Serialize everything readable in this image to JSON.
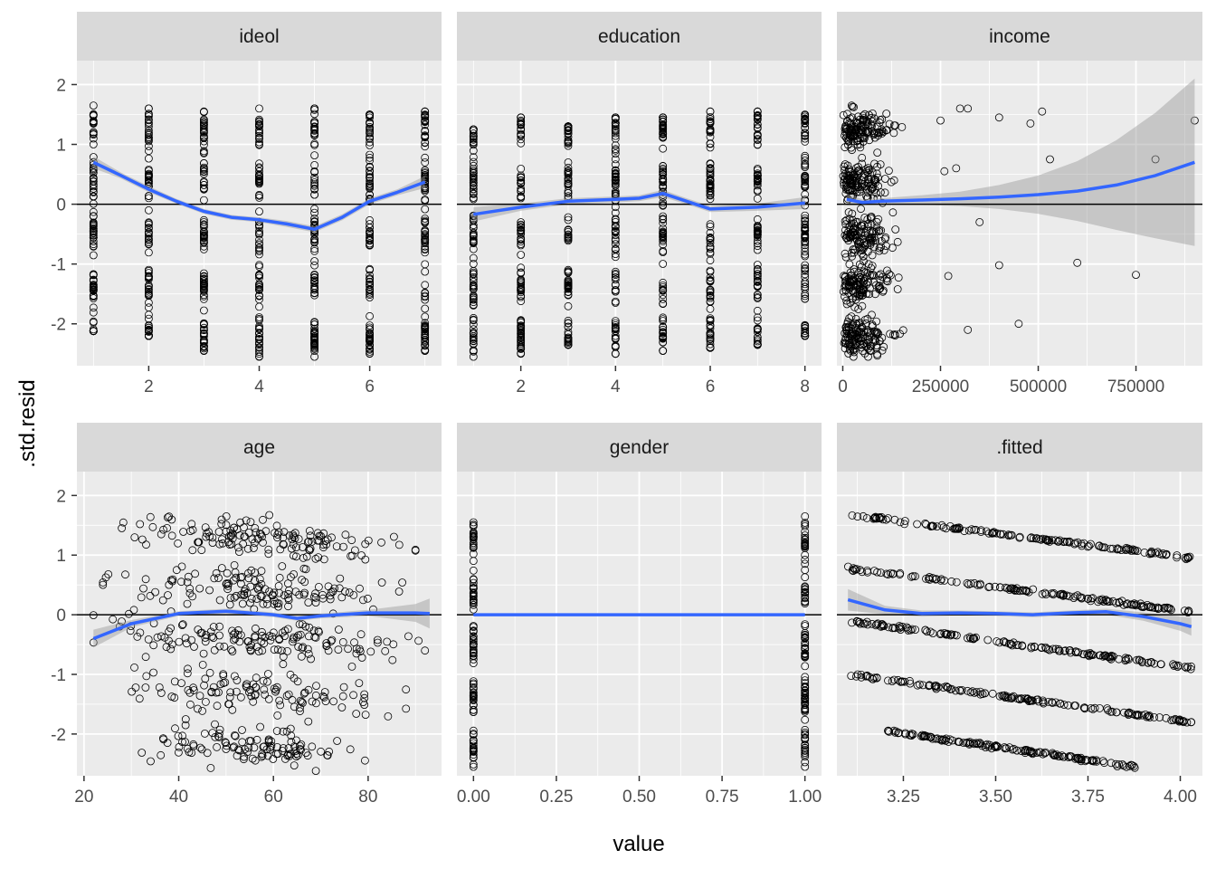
{
  "chart_data": {
    "type": "scatter",
    "title": "",
    "xlabel": "value",
    "ylabel": ".std.resid",
    "ylim": [
      -2.7,
      2.4
    ],
    "yticks": [
      2,
      1,
      0,
      -1,
      -2
    ],
    "ytick_labels": [
      "2",
      "1",
      "0",
      "-1",
      "-2"
    ],
    "reference_line_y": 0,
    "smoother": "loess with confidence band",
    "colors": {
      "panel_bg": "#ebebeb",
      "strip_bg": "#d9d9d9",
      "grid": "#ffffff",
      "points": "#000000",
      "smooth_line": "#3366ff",
      "band": "#999999"
    },
    "panels": [
      {
        "name": "ideol",
        "xlim": [
          0.7,
          7.3
        ],
        "xticks": [
          2,
          4,
          6
        ],
        "xtick_labels": [
          "2",
          "4",
          "6"
        ],
        "columns": [
          {
            "x": 1,
            "ymin": -2.12,
            "ymax": 1.65
          },
          {
            "x": 2,
            "ymin": -2.2,
            "ymax": 1.6
          },
          {
            "x": 3,
            "ymin": -2.45,
            "ymax": 1.55
          },
          {
            "x": 4,
            "ymin": -2.55,
            "ymax": 1.6
          },
          {
            "x": 5,
            "ymin": -2.55,
            "ymax": 1.6
          },
          {
            "x": 6,
            "ymin": -2.5,
            "ymax": 1.5
          },
          {
            "x": 7,
            "ymin": -2.45,
            "ymax": 1.55
          }
        ],
        "smooth": {
          "x": [
            1,
            1.5,
            2,
            2.5,
            3,
            3.5,
            4,
            4.5,
            5,
            5.5,
            6,
            6.5,
            7
          ],
          "y": [
            0.7,
            0.48,
            0.25,
            0.05,
            -0.12,
            -0.22,
            -0.26,
            -0.33,
            -0.42,
            -0.22,
            0.05,
            0.2,
            0.37
          ],
          "se": [
            0.1,
            0.05,
            0.05,
            0.04,
            0.04,
            0.04,
            0.04,
            0.05,
            0.05,
            0.05,
            0.05,
            0.05,
            0.1
          ]
        }
      },
      {
        "name": "education",
        "xlim": [
          0.65,
          8.35
        ],
        "xticks": [
          2,
          4,
          6,
          8
        ],
        "xtick_labels": [
          "2",
          "4",
          "6",
          "8"
        ],
        "columns": [
          {
            "x": 1,
            "ymin": -2.55,
            "ymax": 1.25
          },
          {
            "x": 2,
            "ymin": -2.5,
            "ymax": 1.45
          },
          {
            "x": 3,
            "ymin": -2.35,
            "ymax": 1.3
          },
          {
            "x": 4,
            "ymin": -2.5,
            "ymax": 1.45
          },
          {
            "x": 5,
            "ymin": -2.45,
            "ymax": 1.45
          },
          {
            "x": 6,
            "ymin": -2.4,
            "ymax": 1.55
          },
          {
            "x": 7,
            "ymin": -2.35,
            "ymax": 1.55
          },
          {
            "x": 8,
            "ymin": -2.2,
            "ymax": 1.5
          }
        ],
        "smooth": {
          "x": [
            1,
            2,
            3,
            4,
            4.5,
            5,
            5.5,
            6,
            7,
            8
          ],
          "y": [
            -0.17,
            -0.05,
            0.05,
            0.08,
            0.1,
            0.18,
            0.05,
            -0.08,
            -0.05,
            0.02
          ],
          "se": [
            0.12,
            0.06,
            0.05,
            0.05,
            0.05,
            0.06,
            0.05,
            0.05,
            0.06,
            0.1
          ]
        }
      },
      {
        "name": "income",
        "xlim": [
          -15000,
          920000
        ],
        "xticks": [
          0,
          250000,
          500000,
          750000
        ],
        "xtick_labels": [
          "0",
          "250000",
          "500000",
          "750000"
        ],
        "smooth": {
          "x": [
            10000,
            50000,
            100000,
            200000,
            300000,
            400000,
            500000,
            600000,
            700000,
            800000,
            900000
          ],
          "y": [
            0.08,
            0.03,
            0.05,
            0.07,
            0.09,
            0.12,
            0.16,
            0.22,
            0.32,
            0.48,
            0.7
          ],
          "se": [
            0.1,
            0.05,
            0.05,
            0.08,
            0.12,
            0.2,
            0.32,
            0.5,
            0.75,
            1.05,
            1.4
          ]
        },
        "outliers": [
          {
            "x": 250000,
            "y": 1.4
          },
          {
            "x": 260000,
            "y": 0.55
          },
          {
            "x": 270000,
            "y": -1.2
          },
          {
            "x": 290000,
            "y": 0.6
          },
          {
            "x": 300000,
            "y": 1.6
          },
          {
            "x": 320000,
            "y": 1.6
          },
          {
            "x": 320000,
            "y": -2.1
          },
          {
            "x": 350000,
            "y": -0.3
          },
          {
            "x": 400000,
            "y": 1.45
          },
          {
            "x": 400000,
            "y": -1.02
          },
          {
            "x": 450000,
            "y": -2.0
          },
          {
            "x": 480000,
            "y": 1.35
          },
          {
            "x": 510000,
            "y": 1.55
          },
          {
            "x": 530000,
            "y": 0.75
          },
          {
            "x": 600000,
            "y": -0.98
          },
          {
            "x": 750000,
            "y": -1.18
          },
          {
            "x": 800000,
            "y": 0.75
          },
          {
            "x": 900000,
            "y": 1.4
          }
        ]
      },
      {
        "name": "age",
        "xlim": [
          18.5,
          95.5
        ],
        "xticks": [
          20,
          40,
          60,
          80
        ],
        "xtick_labels": [
          "20",
          "40",
          "60",
          "80"
        ],
        "smooth": {
          "x": [
            22,
            30,
            40,
            50,
            60,
            65,
            70,
            80,
            90,
            93
          ],
          "y": [
            -0.4,
            -0.15,
            0.02,
            0.06,
            0.0,
            -0.06,
            -0.02,
            0.03,
            0.03,
            0.02
          ],
          "se": [
            0.15,
            0.06,
            0.04,
            0.04,
            0.04,
            0.04,
            0.04,
            0.05,
            0.15,
            0.25
          ]
        }
      },
      {
        "name": "gender",
        "xlim": [
          -0.05,
          1.05
        ],
        "xticks": [
          0,
          0.25,
          0.5,
          0.75,
          1
        ],
        "xtick_labels": [
          "0.00",
          "0.25",
          "0.50",
          "0.75",
          "1.00"
        ],
        "columns": [
          {
            "x": 0,
            "ymin": -2.55,
            "ymax": 1.55
          },
          {
            "x": 1,
            "ymin": -2.55,
            "ymax": 1.65
          }
        ],
        "smooth": {
          "x": [
            0,
            1
          ],
          "y": [
            0,
            0
          ],
          "se": [
            0.02,
            0.02
          ]
        }
      },
      {
        "name": ".fitted",
        "xlim": [
          3.07,
          4.06
        ],
        "xticks": [
          3.25,
          3.5,
          3.75,
          4.0
        ],
        "xtick_labels": [
          "3.25",
          "3.50",
          "3.75",
          "4.00"
        ],
        "diagonal_bands": [
          {
            "x0": 3.1,
            "y0": 1.68,
            "x1": 4.03,
            "y1": 0.95
          },
          {
            "x0": 3.1,
            "y0": 0.78,
            "x1": 4.03,
            "y1": 0.05
          },
          {
            "x0": 3.1,
            "y0": -0.1,
            "x1": 4.03,
            "y1": -0.9
          },
          {
            "x0": 3.1,
            "y0": -1.0,
            "x1": 4.03,
            "y1": -1.8
          },
          {
            "x0": 3.2,
            "y0": -1.95,
            "x1": 3.88,
            "y1": -2.55
          }
        ],
        "smooth": {
          "x": [
            3.1,
            3.2,
            3.3,
            3.4,
            3.5,
            3.6,
            3.7,
            3.8,
            3.9,
            4.0,
            4.03
          ],
          "y": [
            0.25,
            0.08,
            0.02,
            0.03,
            0.02,
            0.0,
            0.03,
            0.05,
            -0.03,
            -0.15,
            -0.2
          ],
          "se": [
            0.18,
            0.07,
            0.05,
            0.04,
            0.04,
            0.04,
            0.04,
            0.05,
            0.07,
            0.12,
            0.15
          ]
        }
      }
    ]
  }
}
